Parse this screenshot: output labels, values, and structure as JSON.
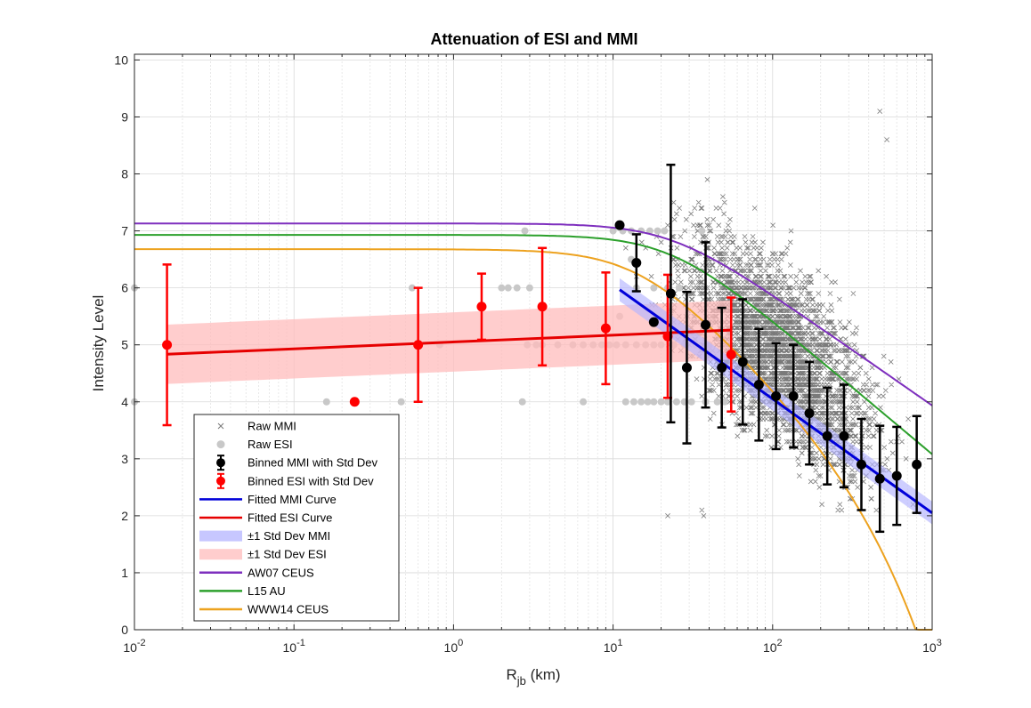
{
  "chart_data": {
    "type": "scatter",
    "title": "Attenuation of ESI and MMI",
    "xlabel": "R",
    "xlabel_sub": "jb",
    "xlabel_unit": " (km)",
    "ylabel": "Intensity Level",
    "x_scale": "log",
    "xlim": [
      0.01,
      1000
    ],
    "ylim": [
      0,
      10.1
    ],
    "x_ticks": [
      {
        "base": "10",
        "exp": "-2"
      },
      {
        "base": "10",
        "exp": "-1"
      },
      {
        "base": "10",
        "exp": "0"
      },
      {
        "base": "10",
        "exp": "1"
      },
      {
        "base": "10",
        "exp": "2"
      },
      {
        "base": "10",
        "exp": "3"
      }
    ],
    "y_ticks": [
      "0",
      "1",
      "2",
      "3",
      "4",
      "5",
      "6",
      "7",
      "8",
      "9",
      "10"
    ],
    "grid": true,
    "legend_position": "bottom-left",
    "colors": {
      "raw_mmi": "#7a7a7a",
      "raw_esi": "#c8c8c8",
      "binned_mmi": "#000000",
      "binned_esi": "#ff0000",
      "fitted_mmi": "#0000d9",
      "fitted_esi": "#e60000",
      "band_mmi": "#b4b4ff",
      "band_esi": "#ffbcbc",
      "aw07": "#7e2fbe",
      "l15": "#2ca02c",
      "www14": "#eda21f"
    },
    "legend": [
      {
        "label": "Raw MMI",
        "kind": "cross",
        "key": "raw_mmi"
      },
      {
        "label": "Raw ESI",
        "kind": "dot",
        "key": "raw_esi"
      },
      {
        "label": "Binned MMI with Std Dev",
        "kind": "errorbar",
        "key": "binned_mmi"
      },
      {
        "label": "Binned ESI with Std Dev",
        "kind": "errorbar",
        "key": "binned_esi"
      },
      {
        "label": "Fitted MMI Curve",
        "kind": "line",
        "key": "fitted_mmi"
      },
      {
        "label": "Fitted ESI Curve",
        "kind": "line",
        "key": "fitted_esi"
      },
      {
        "label": "±1 Std Dev MMI",
        "kind": "band",
        "key": "band_mmi"
      },
      {
        "label": "±1 Std Dev ESI",
        "kind": "band",
        "key": "band_esi"
      },
      {
        "label": "AW07 CEUS",
        "kind": "line",
        "key": "aw07"
      },
      {
        "label": "L15 AU",
        "kind": "line",
        "key": "l15"
      },
      {
        "label": "WWW14 CEUS",
        "kind": "line",
        "key": "www14"
      }
    ],
    "raw_esi": [
      [
        0.01,
        6
      ],
      [
        0.01,
        4
      ],
      [
        0.16,
        4
      ],
      [
        0.47,
        4
      ],
      [
        0.55,
        6
      ],
      [
        0.82,
        5
      ],
      [
        2.0,
        6
      ],
      [
        2.2,
        6
      ],
      [
        2.5,
        6
      ],
      [
        3.0,
        6
      ],
      [
        2.7,
        4
      ],
      [
        2.8,
        7
      ],
      [
        2.9,
        5
      ],
      [
        3.3,
        5
      ],
      [
        3.6,
        5
      ],
      [
        4.5,
        5
      ],
      [
        5.6,
        5
      ],
      [
        6.5,
        5
      ],
      [
        7.5,
        5
      ],
      [
        8.5,
        5
      ],
      [
        9.5,
        5
      ],
      [
        10.5,
        5
      ],
      [
        12,
        5
      ],
      [
        14,
        5
      ],
      [
        16,
        5
      ],
      [
        18,
        5
      ],
      [
        20,
        5
      ],
      [
        24,
        5
      ],
      [
        28,
        5
      ],
      [
        33,
        5
      ],
      [
        40,
        5
      ],
      [
        10,
        7
      ],
      [
        11.5,
        7
      ],
      [
        13,
        7
      ],
      [
        15,
        7
      ],
      [
        17,
        7
      ],
      [
        19,
        7
      ],
      [
        21,
        7
      ],
      [
        36,
        7
      ],
      [
        12,
        4
      ],
      [
        13.5,
        4
      ],
      [
        15,
        4
      ],
      [
        16.5,
        4
      ],
      [
        18,
        4
      ],
      [
        20,
        4
      ],
      [
        22,
        4
      ],
      [
        25,
        4
      ],
      [
        28,
        4
      ],
      [
        31,
        4
      ],
      [
        38,
        4
      ],
      [
        45,
        4
      ],
      [
        50,
        4
      ],
      [
        6.5,
        4
      ],
      [
        18,
        6
      ],
      [
        22,
        6
      ],
      [
        26,
        6
      ],
      [
        14,
        6
      ],
      [
        11,
        5.5
      ],
      [
        13,
        6.5
      ]
    ],
    "binned_esi": [
      {
        "r": 0.016,
        "mean": 5.0,
        "sd": 1.41
      },
      {
        "r": 0.24,
        "mean": 4.0,
        "sd": 0
      },
      {
        "r": 0.6,
        "mean": 5.0,
        "sd": 1.0
      },
      {
        "r": 1.5,
        "mean": 5.67,
        "sd": 0.58
      },
      {
        "r": 3.6,
        "mean": 5.67,
        "sd": 1.03
      },
      {
        "r": 9.0,
        "mean": 5.29,
        "sd": 0.98
      },
      {
        "r": 22,
        "mean": 5.15,
        "sd": 1.08
      },
      {
        "r": 55,
        "mean": 4.83,
        "sd": 1.0
      }
    ],
    "binned_mmi": [
      {
        "r": 11,
        "mean": 7.1,
        "sd": 0
      },
      {
        "r": 14,
        "mean": 6.44,
        "sd": 0.5
      },
      {
        "r": 18,
        "mean": 5.4,
        "sd": 0
      },
      {
        "r": 23,
        "mean": 5.9,
        "sd": 2.26
      },
      {
        "r": 29,
        "mean": 4.6,
        "sd": 1.33
      },
      {
        "r": 38,
        "mean": 5.35,
        "sd": 1.45
      },
      {
        "r": 48,
        "mean": 4.6,
        "sd": 1.05
      },
      {
        "r": 65,
        "mean": 4.7,
        "sd": 1.1
      },
      {
        "r": 82,
        "mean": 4.3,
        "sd": 0.98
      },
      {
        "r": 105,
        "mean": 4.1,
        "sd": 0.93
      },
      {
        "r": 135,
        "mean": 4.1,
        "sd": 0.9
      },
      {
        "r": 170,
        "mean": 3.8,
        "sd": 0.9
      },
      {
        "r": 220,
        "mean": 3.4,
        "sd": 0.85
      },
      {
        "r": 280,
        "mean": 3.4,
        "sd": 0.9
      },
      {
        "r": 360,
        "mean": 2.9,
        "sd": 0.8
      },
      {
        "r": 470,
        "mean": 2.65,
        "sd": 0.93
      },
      {
        "r": 600,
        "mean": 2.7,
        "sd": 0.86
      },
      {
        "r": 800,
        "mean": 2.9,
        "sd": 0.85
      }
    ],
    "fitted_mmi": {
      "r_range": [
        11,
        1000
      ],
      "a": 8.05,
      "b": -2.0,
      "sd": 0.2
    },
    "fitted_esi": {
      "r_range": [
        0.016,
        55
      ],
      "a": 5.05,
      "b": 0.12,
      "sd": 0.52
    },
    "gmice_curves": [
      {
        "key": "aw07",
        "label": "AW07 CEUS",
        "plateau": 7.13,
        "r_knee": 23,
        "slope": 1.95,
        "linear": 0
      },
      {
        "key": "l15",
        "label": "L15 AU",
        "plateau": 6.93,
        "r_knee": 23,
        "slope": 2.35,
        "linear": 0
      },
      {
        "key": "www14",
        "label": "WWW14 CEUS",
        "plateau": 6.68,
        "r_knee": 14,
        "slope": 2.6,
        "linear": 0.0027
      }
    ],
    "raw_mmi_clusters": [
      {
        "r_center": 120,
        "spread_log": 0.38,
        "i_min": 2,
        "i_max": 8.2,
        "count": 2600
      },
      {
        "r_center": 45,
        "spread_log": 0.25,
        "i_min": 2.7,
        "i_max": 7.5,
        "count": 320
      }
    ],
    "raw_mmi_extra": [
      [
        470,
        9.1
      ],
      [
        520,
        8.6
      ],
      [
        22,
        2.0
      ],
      [
        36,
        2.1
      ],
      [
        37,
        2.0
      ],
      [
        39,
        7.9
      ],
      [
        40,
        6.5
      ],
      [
        12,
        6.7
      ],
      [
        14,
        6.2
      ],
      [
        16,
        6.7
      ]
    ]
  }
}
